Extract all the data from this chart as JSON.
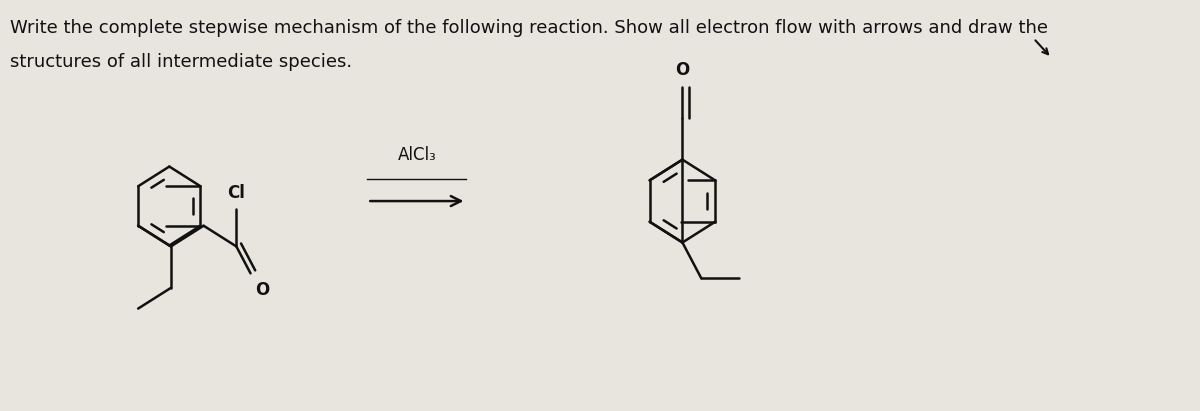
{
  "title_line1": "Write the complete stepwise mechanism of the following reaction. Show all electron flow with arrows and draw the",
  "title_line2": "structures of all intermediate species.",
  "background_color": "#e8e5df",
  "text_color": "#111111",
  "title_fontsize": 13.0,
  "reagent_text": "AlCl₃",
  "lw": 1.8,
  "color": "#111111"
}
